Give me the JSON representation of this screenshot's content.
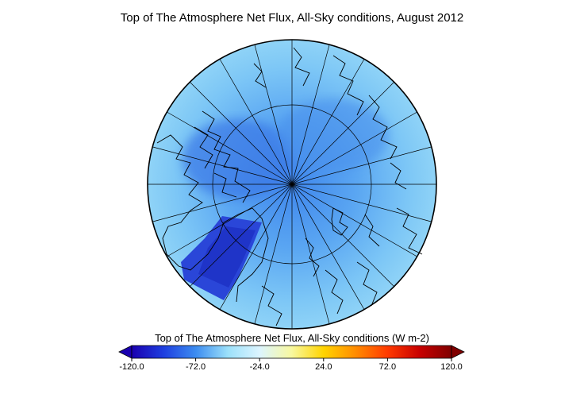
{
  "title": "Top of The Atmosphere Net Flux, All-Sky conditions, August 2012",
  "colorbar": {
    "label": "Top of The Atmosphere Net Flux, All-Sky conditions (W m-2)",
    "ticks": [
      "-120.0",
      "-72.0",
      "-24.0",
      "24.0",
      "72.0",
      "120.0"
    ],
    "min": -120,
    "max": 120,
    "colors": [
      "#1a00b0",
      "#1e3fe0",
      "#3c8cf0",
      "#9be0fa",
      "#dcf5ff",
      "#f8f8a0",
      "#ffd400",
      "#ff8c00",
      "#ff3a00",
      "#c80000",
      "#800000"
    ]
  },
  "map": {
    "projection": "north-polar-stereographic",
    "background_color": "#8cd3f5",
    "low_flux_color": "#2546d6"
  }
}
